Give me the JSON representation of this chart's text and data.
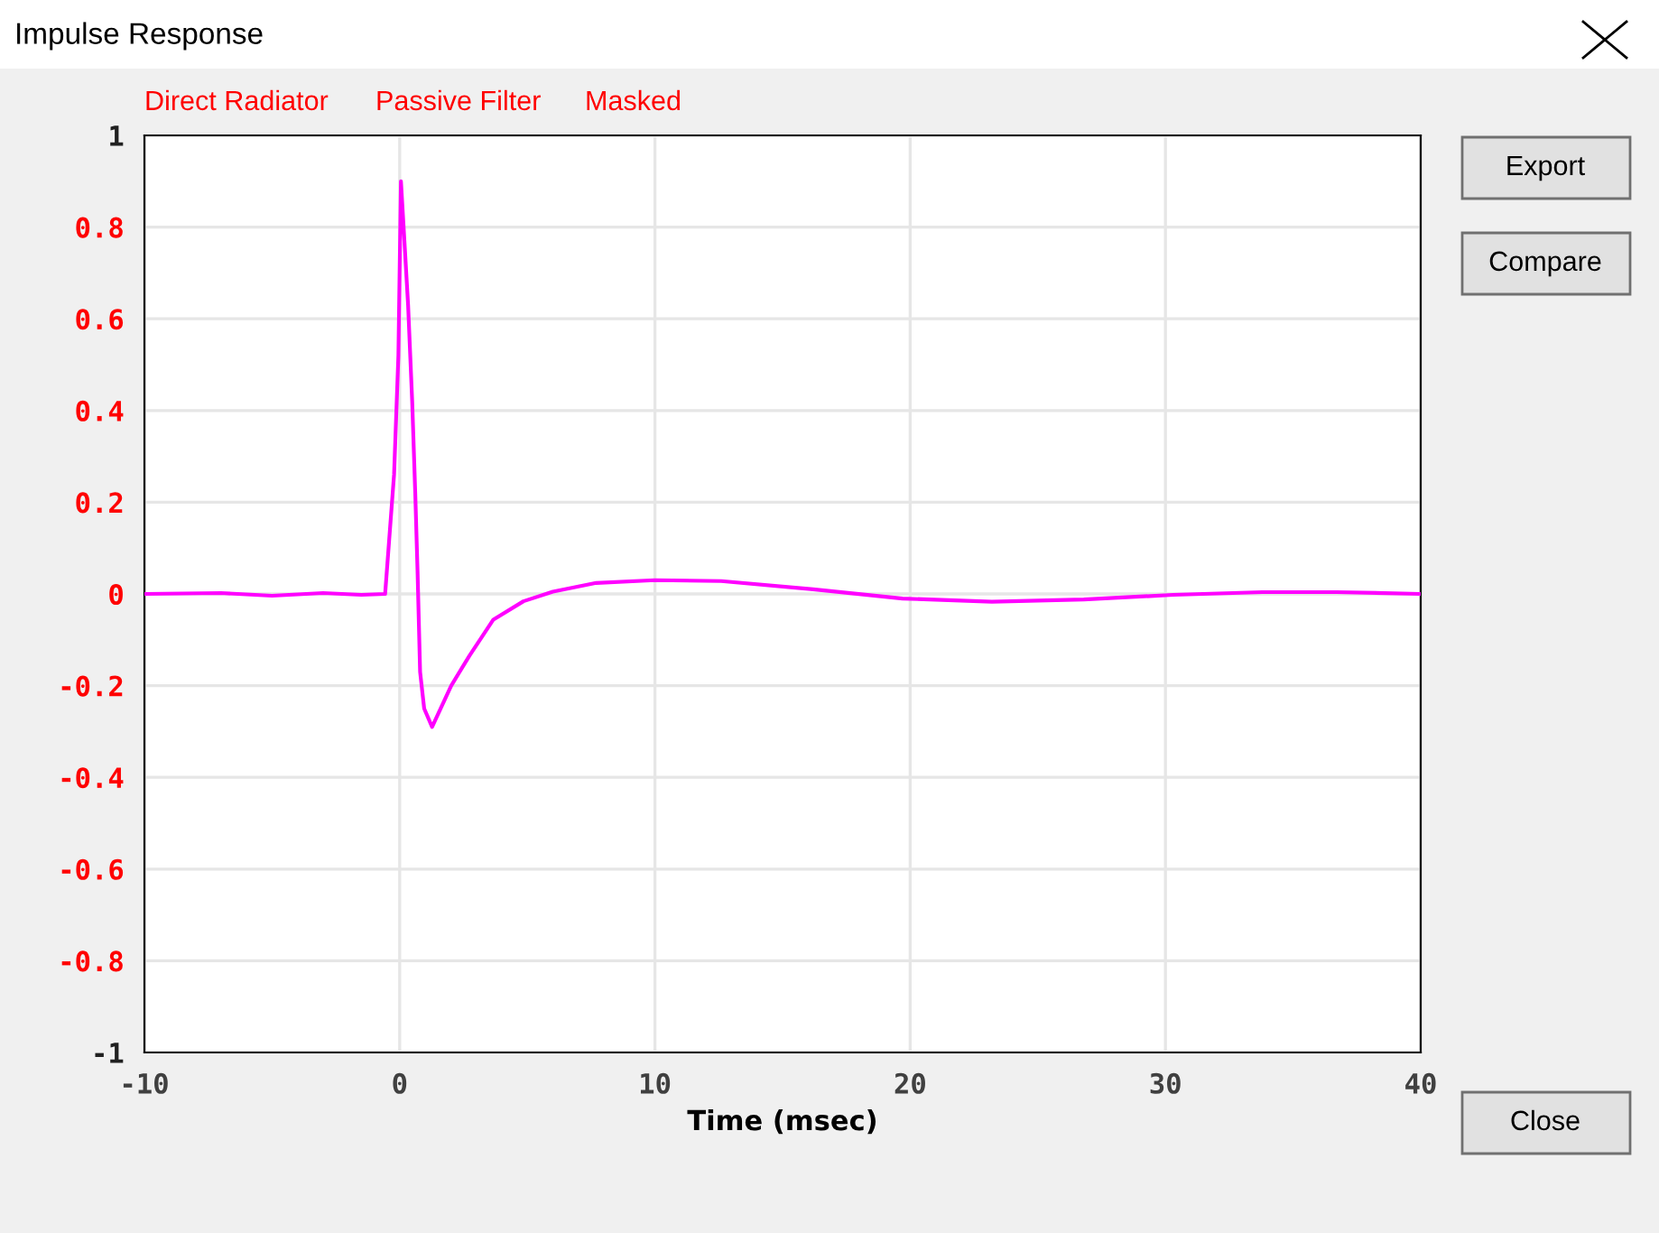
{
  "chart_data": {
    "type": "line",
    "title": "Impulse Response",
    "xlabel": "Time (msec)",
    "annotations": [
      "Direct Radiator",
      "Passive Filter",
      "Masked",
      "Export",
      "Compare",
      "Close"
    ],
    "x": [
      -10,
      -7,
      -5,
      -3,
      -1.5,
      -0.57,
      -0.22,
      -0.05,
      0.05,
      0.33,
      0.49,
      0.61,
      0.7,
      0.8,
      0.96,
      1.27,
      2.02,
      2.73,
      3.67,
      4.85,
      6,
      7.7,
      10,
      12.6,
      16.2,
      19.7,
      23.2,
      26.8,
      30.3,
      33.8,
      36.7,
      40
    ],
    "series": [
      {
        "color": "#ff00ff",
        "values": [
          0,
          0.002,
          -0.004,
          0.002,
          -0.002,
          0,
          0.26,
          0.52,
          0.9,
          0.63,
          0.42,
          0.22,
          0.05,
          -0.17,
          -0.25,
          -0.29,
          -0.2,
          -0.135,
          -0.056,
          -0.016,
          0.005,
          0.024,
          0.03,
          0.028,
          0.01,
          -0.01,
          -0.017,
          -0.012,
          -0.002,
          0.004,
          0.004,
          0.0
        ]
      }
    ],
    "xlim": [
      -10,
      40
    ],
    "xticks": [
      -10,
      0,
      10,
      20,
      30,
      40
    ],
    "ylim": [
      -1,
      1
    ],
    "yticks": [
      -1,
      -0.8,
      -0.6,
      -0.4,
      -0.2,
      0,
      0.2,
      0.4,
      0.6,
      0.8,
      1
    ],
    "grid": true,
    "legend": false,
    "marker": "none",
    "line_style": "solid"
  }
}
